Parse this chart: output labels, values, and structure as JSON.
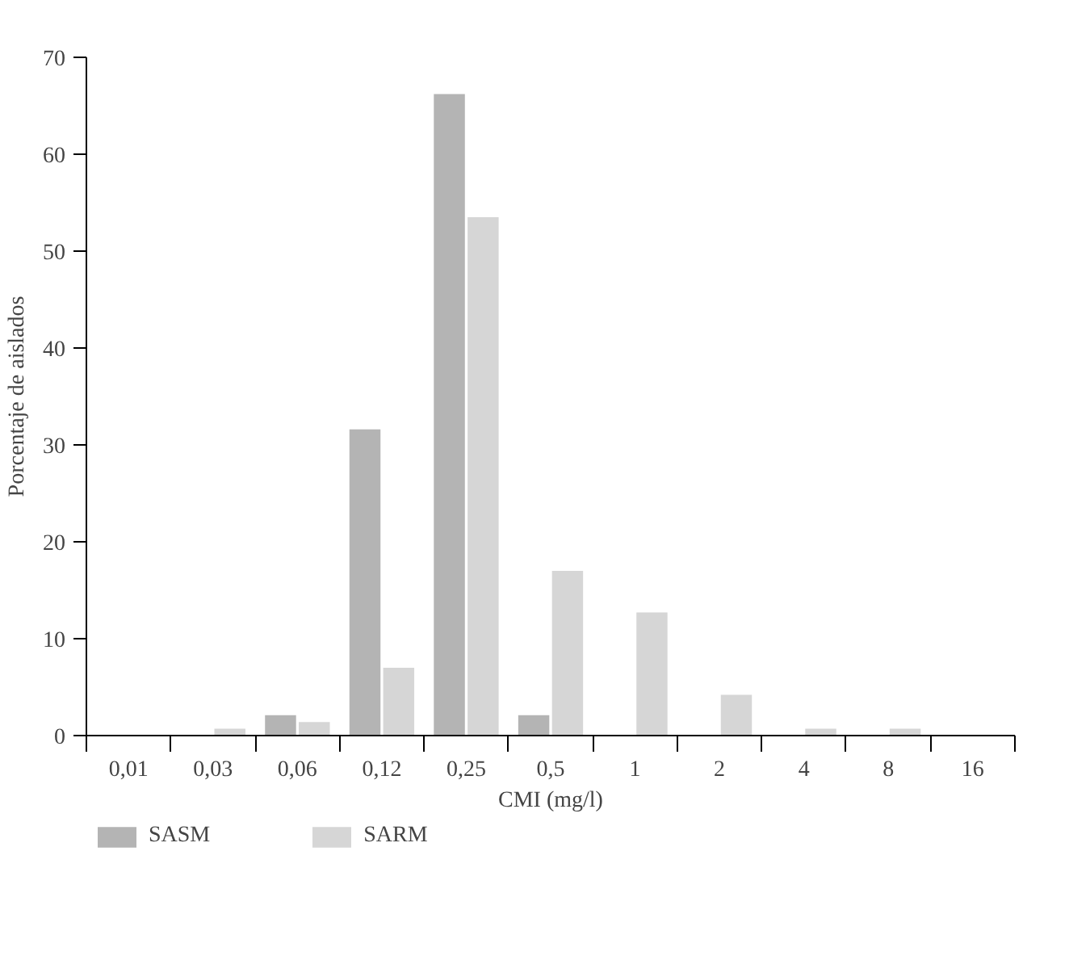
{
  "chart_data": {
    "type": "bar",
    "xlabel": "CMI (mg/l)",
    "ylabel": "Porcentaje de aislados",
    "categories": [
      "0,01",
      "0,03",
      "0,06",
      "0,12",
      "0,25",
      "0,5",
      "1",
      "2",
      "4",
      "8",
      "16"
    ],
    "series": [
      {
        "name": "SASM",
        "color": "#b4b4b4",
        "values": [
          0,
          0,
          2.1,
          31.6,
          66.2,
          2.1,
          0,
          0,
          0,
          0,
          0
        ]
      },
      {
        "name": "SARM",
        "color": "#d6d6d6",
        "values": [
          0,
          0.7,
          1.4,
          7.0,
          53.5,
          17.0,
          12.7,
          4.2,
          0.7,
          0.7,
          0
        ]
      }
    ],
    "ylim": [
      0,
      70
    ],
    "yticks": [
      0,
      10,
      20,
      30,
      40,
      50,
      60,
      70
    ],
    "grid": false,
    "legend": "bottom left"
  }
}
